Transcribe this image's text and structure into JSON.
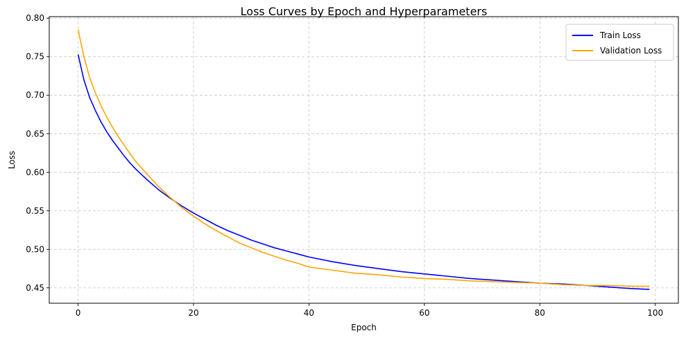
{
  "chart_data": {
    "type": "line",
    "title": "Loss Curves by Epoch and Hyperparameters",
    "xlabel": "Epoch",
    "ylabel": "Loss",
    "xlim": [
      -5,
      104
    ],
    "ylim": [
      0.43,
      0.802
    ],
    "xticks": [
      0,
      20,
      40,
      60,
      80,
      100
    ],
    "yticks": [
      0.45,
      0.5,
      0.55,
      0.6,
      0.65,
      0.7,
      0.75,
      0.8
    ],
    "xtick_labels": [
      "0",
      "20",
      "40",
      "60",
      "80",
      "100"
    ],
    "ytick_labels": [
      "0.45",
      "0.50",
      "0.55",
      "0.60",
      "0.65",
      "0.70",
      "0.75",
      "0.80"
    ],
    "grid": true,
    "legend_position": "top-right",
    "series": [
      {
        "name": "Train Loss",
        "color": "#0000ff",
        "x": [
          0,
          1,
          2,
          3,
          4,
          5,
          6,
          7,
          8,
          9,
          10,
          12,
          14,
          16,
          18,
          20,
          22,
          24,
          26,
          28,
          30,
          32,
          34,
          36,
          38,
          40,
          44,
          48,
          52,
          56,
          60,
          64,
          68,
          72,
          76,
          80,
          84,
          88,
          92,
          96,
          99
        ],
        "y": [
          0.753,
          0.72,
          0.697,
          0.68,
          0.665,
          0.652,
          0.641,
          0.631,
          0.621,
          0.612,
          0.604,
          0.59,
          0.577,
          0.566,
          0.556,
          0.547,
          0.539,
          0.531,
          0.524,
          0.518,
          0.512,
          0.507,
          0.502,
          0.498,
          0.494,
          0.49,
          0.484,
          0.479,
          0.475,
          0.471,
          0.468,
          0.465,
          0.462,
          0.46,
          0.458,
          0.456,
          0.455,
          0.453,
          0.451,
          0.449,
          0.448
        ]
      },
      {
        "name": "Validation Loss",
        "color": "#ffa500",
        "x": [
          0,
          1,
          2,
          3,
          4,
          5,
          6,
          7,
          8,
          9,
          10,
          12,
          14,
          16,
          18,
          20,
          22,
          24,
          26,
          28,
          30,
          32,
          34,
          36,
          38,
          40,
          44,
          48,
          52,
          56,
          60,
          64,
          68,
          72,
          76,
          80,
          84,
          88,
          92,
          96,
          99
        ],
        "y": [
          0.785,
          0.75,
          0.723,
          0.703,
          0.686,
          0.671,
          0.658,
          0.646,
          0.635,
          0.624,
          0.614,
          0.597,
          0.581,
          0.567,
          0.554,
          0.543,
          0.533,
          0.524,
          0.516,
          0.508,
          0.502,
          0.496,
          0.491,
          0.486,
          0.482,
          0.477,
          0.473,
          0.469,
          0.467,
          0.464,
          0.462,
          0.461,
          0.459,
          0.458,
          0.457,
          0.456,
          0.454,
          0.453,
          0.453,
          0.452,
          0.452
        ]
      }
    ]
  }
}
